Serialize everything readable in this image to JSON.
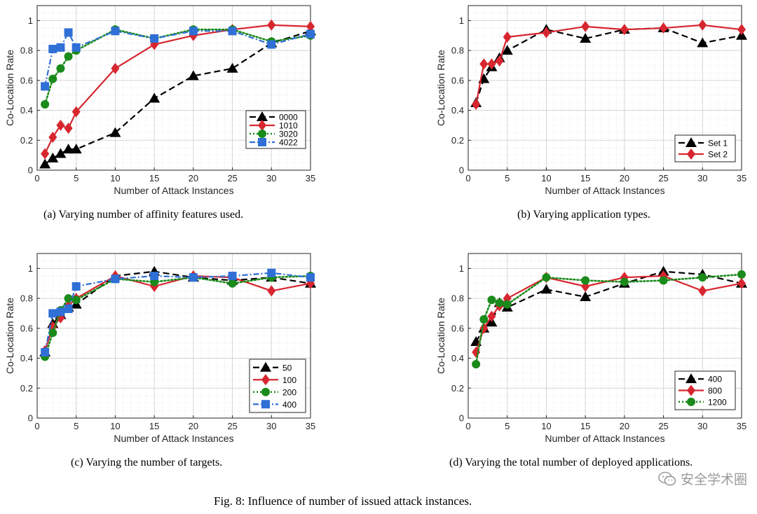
{
  "figure_caption": "Fig. 8: Influence of number of issued attack instances.",
  "watermark": {
    "text": "安全学术圈",
    "icon": "wechat-icon"
  },
  "styles": {
    "black": {
      "color": "#000000",
      "dash": "dash",
      "marker": "triangle"
    },
    "red": {
      "color": "#d7262f",
      "dash": "solid",
      "marker": "diamond"
    },
    "green": {
      "color": "#1a8a1a",
      "dash": "dot",
      "marker": "circle"
    },
    "blue": {
      "color": "#2f6fd6",
      "dash": "dashdot",
      "marker": "square"
    }
  },
  "chart_data": [
    {
      "type": "line",
      "caption": "(a) Varying number of affinity features used.",
      "xlabel": "Number of Attack Instances",
      "ylabel": "Co-Location Rate",
      "xlim": [
        0,
        35
      ],
      "ylim": [
        0,
        1.1
      ],
      "xticks": [
        0,
        5,
        10,
        15,
        20,
        25,
        30,
        35
      ],
      "yticks": [
        0,
        0.2,
        0.4,
        0.6,
        0.8,
        1
      ],
      "ytick_labels": [
        "0",
        "0.2",
        "0.4",
        "0.6",
        "0.8",
        "1"
      ],
      "grid": true,
      "legend_position": "center-right",
      "x": [
        1,
        2,
        3,
        4,
        5,
        10,
        15,
        20,
        25,
        30,
        35
      ],
      "series": [
        {
          "name": "0000",
          "style": "black",
          "x": [
            1,
            2,
            3,
            4,
            5,
            10,
            15,
            20,
            25,
            30,
            35
          ],
          "values": [
            0.04,
            0.08,
            0.11,
            0.14,
            0.14,
            0.25,
            0.48,
            0.63,
            0.68,
            0.85,
            0.93
          ]
        },
        {
          "name": "1010",
          "style": "red",
          "x": [
            1,
            2,
            3,
            4,
            5,
            10,
            15,
            20,
            25,
            30,
            35
          ],
          "values": [
            0.11,
            0.22,
            0.3,
            0.28,
            0.39,
            0.68,
            0.84,
            0.9,
            0.94,
            0.97,
            0.96
          ]
        },
        {
          "name": "3020",
          "style": "green",
          "x": [
            1,
            2,
            3,
            4,
            5,
            10,
            15,
            20,
            25,
            30,
            35
          ],
          "values": [
            0.44,
            0.61,
            0.68,
            0.76,
            0.8,
            0.94,
            0.88,
            0.94,
            0.94,
            0.86,
            0.9
          ]
        },
        {
          "name": "4022",
          "style": "blue",
          "x": [
            1,
            2,
            3,
            4,
            5,
            10,
            15,
            20,
            25,
            30,
            35
          ],
          "values": [
            0.56,
            0.81,
            0.82,
            0.92,
            0.82,
            0.93,
            0.88,
            0.93,
            0.93,
            0.84,
            0.91
          ]
        }
      ]
    },
    {
      "type": "line",
      "caption": "(b) Varying application types.",
      "xlabel": "Number of Attack Instances",
      "ylabel": "Co-Location Rate",
      "xlim": [
        0,
        35
      ],
      "ylim": [
        0,
        1.1
      ],
      "xticks": [
        0,
        5,
        10,
        15,
        20,
        25,
        30,
        35
      ],
      "yticks": [
        0,
        0.2,
        0.4,
        0.6,
        0.8,
        1
      ],
      "ytick_labels": [
        "0",
        "0.2",
        "0.4",
        "0.6",
        "0.8",
        "1"
      ],
      "grid": true,
      "legend_position": "bottom-right",
      "series": [
        {
          "name": "Set 1",
          "style": "black",
          "x": [
            1,
            2,
            3,
            4,
            5,
            10,
            15,
            20,
            25,
            30,
            35
          ],
          "values": [
            0.45,
            0.61,
            0.69,
            0.75,
            0.8,
            0.94,
            0.88,
            0.94,
            0.95,
            0.85,
            0.9
          ]
        },
        {
          "name": "Set 2",
          "style": "red",
          "x": [
            1,
            2,
            3,
            4,
            5,
            10,
            15,
            20,
            25,
            30,
            35
          ],
          "values": [
            0.44,
            0.71,
            0.71,
            0.73,
            0.89,
            0.92,
            0.96,
            0.94,
            0.95,
            0.97,
            0.94
          ]
        }
      ]
    },
    {
      "type": "line",
      "caption": "(c) Varying the number of targets.",
      "xlabel": "Number of Attack Instances",
      "ylabel": "Co-Location Rate",
      "xlim": [
        0,
        35
      ],
      "ylim": [
        0,
        1.1
      ],
      "xticks": [
        0,
        5,
        10,
        15,
        20,
        25,
        30,
        35
      ],
      "yticks": [
        0,
        0.2,
        0.4,
        0.6,
        0.8,
        1
      ],
      "ytick_labels": [
        "0",
        "0.2",
        "0.4",
        "0.6",
        "0.8",
        "1"
      ],
      "grid": true,
      "legend_position": "bottom-right",
      "series": [
        {
          "name": "50",
          "style": "black",
          "x": [
            1,
            2,
            3,
            4,
            5,
            10,
            15,
            20,
            25,
            30,
            35
          ],
          "values": [
            0.44,
            0.63,
            0.69,
            0.74,
            0.76,
            0.95,
            0.98,
            0.94,
            0.92,
            0.94,
            0.9
          ]
        },
        {
          "name": "100",
          "style": "red",
          "x": [
            1,
            2,
            3,
            4,
            5,
            10,
            15,
            20,
            25,
            30,
            35
          ],
          "values": [
            0.45,
            0.61,
            0.67,
            0.75,
            0.8,
            0.95,
            0.88,
            0.95,
            0.94,
            0.85,
            0.9
          ]
        },
        {
          "name": "200",
          "style": "green",
          "x": [
            1,
            2,
            3,
            4,
            5,
            10,
            15,
            20,
            25,
            30,
            35
          ],
          "values": [
            0.41,
            0.57,
            0.72,
            0.8,
            0.79,
            0.93,
            0.91,
            0.94,
            0.9,
            0.94,
            0.95
          ]
        },
        {
          "name": "400",
          "style": "blue",
          "x": [
            1,
            2,
            3,
            4,
            5,
            10,
            15,
            20,
            25,
            30,
            35
          ],
          "values": [
            0.44,
            0.7,
            0.71,
            0.73,
            0.88,
            0.93,
            0.95,
            0.94,
            0.95,
            0.97,
            0.94
          ]
        }
      ]
    },
    {
      "type": "line",
      "caption": "(d) Varying the total number of deployed applications.",
      "xlabel": "Number of Attack Instances",
      "ylabel": "Co-Location Rate",
      "xlim": [
        0,
        35
      ],
      "ylim": [
        0,
        1.1
      ],
      "xticks": [
        0,
        5,
        10,
        15,
        20,
        25,
        30,
        35
      ],
      "yticks": [
        0,
        0.2,
        0.4,
        0.6,
        0.8,
        1
      ],
      "ytick_labels": [
        "0",
        "0.2",
        "0.4",
        "0.6",
        "0.8",
        "1"
      ],
      "grid": true,
      "legend_position": "bottom-right",
      "series": [
        {
          "name": "400",
          "style": "black",
          "x": [
            1,
            2,
            3,
            4,
            5,
            10,
            15,
            20,
            25,
            30,
            35
          ],
          "values": [
            0.51,
            0.6,
            0.64,
            0.77,
            0.74,
            0.86,
            0.81,
            0.9,
            0.98,
            0.96,
            0.9
          ]
        },
        {
          "name": "800",
          "style": "red",
          "x": [
            1,
            2,
            3,
            4,
            5,
            10,
            15,
            20,
            25,
            30,
            35
          ],
          "values": [
            0.44,
            0.6,
            0.68,
            0.75,
            0.8,
            0.94,
            0.88,
            0.94,
            0.95,
            0.85,
            0.9
          ]
        },
        {
          "name": "1200",
          "style": "green",
          "x": [
            1,
            2,
            3,
            4,
            5,
            10,
            15,
            20,
            25,
            30,
            35
          ],
          "values": [
            0.36,
            0.66,
            0.79,
            0.77,
            0.76,
            0.94,
            0.92,
            0.91,
            0.92,
            0.94,
            0.96
          ]
        }
      ]
    }
  ]
}
